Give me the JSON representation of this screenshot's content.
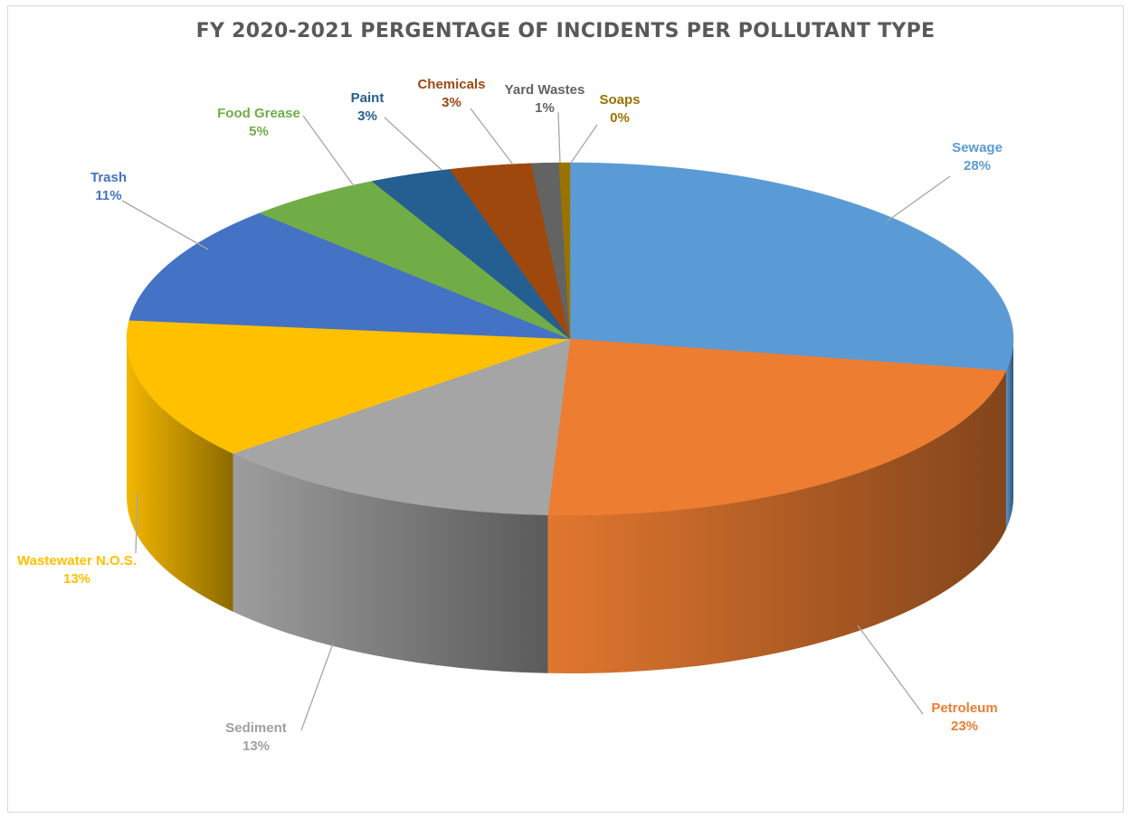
{
  "chart_data": {
    "type": "pie",
    "title": "FY 2020-2021 PERGENTAGE OF INCIDENTS PER POLLUTANT TYPE",
    "slices": [
      {
        "name": "Sewage",
        "value": 28,
        "label": "28%",
        "color": "#5b9bd5"
      },
      {
        "name": "Petroleum",
        "value": 23,
        "label": "23%",
        "color": "#ed7d31"
      },
      {
        "name": "Sediment",
        "value": 13,
        "label": "13%",
        "color": "#a5a5a5"
      },
      {
        "name": "Wastewater N.O.S.",
        "value": 13,
        "label": "13%",
        "color": "#ffc000"
      },
      {
        "name": "Trash",
        "value": 11,
        "label": "11%",
        "color": "#4472c4"
      },
      {
        "name": "Food Grease",
        "value": 5,
        "label": "5%",
        "color": "#70ad47"
      },
      {
        "name": "Paint",
        "value": 3,
        "label": "3%",
        "color": "#255e91"
      },
      {
        "name": "Chemicals",
        "value": 3,
        "label": "3%",
        "color": "#9e480e"
      },
      {
        "name": "Yard Wastes",
        "value": 1,
        "label": "1%",
        "color": "#636363"
      },
      {
        "name": "Soaps",
        "value": 0.4,
        "label": "0%",
        "color": "#997300"
      }
    ],
    "legend": "none",
    "style": "3d-pie"
  }
}
